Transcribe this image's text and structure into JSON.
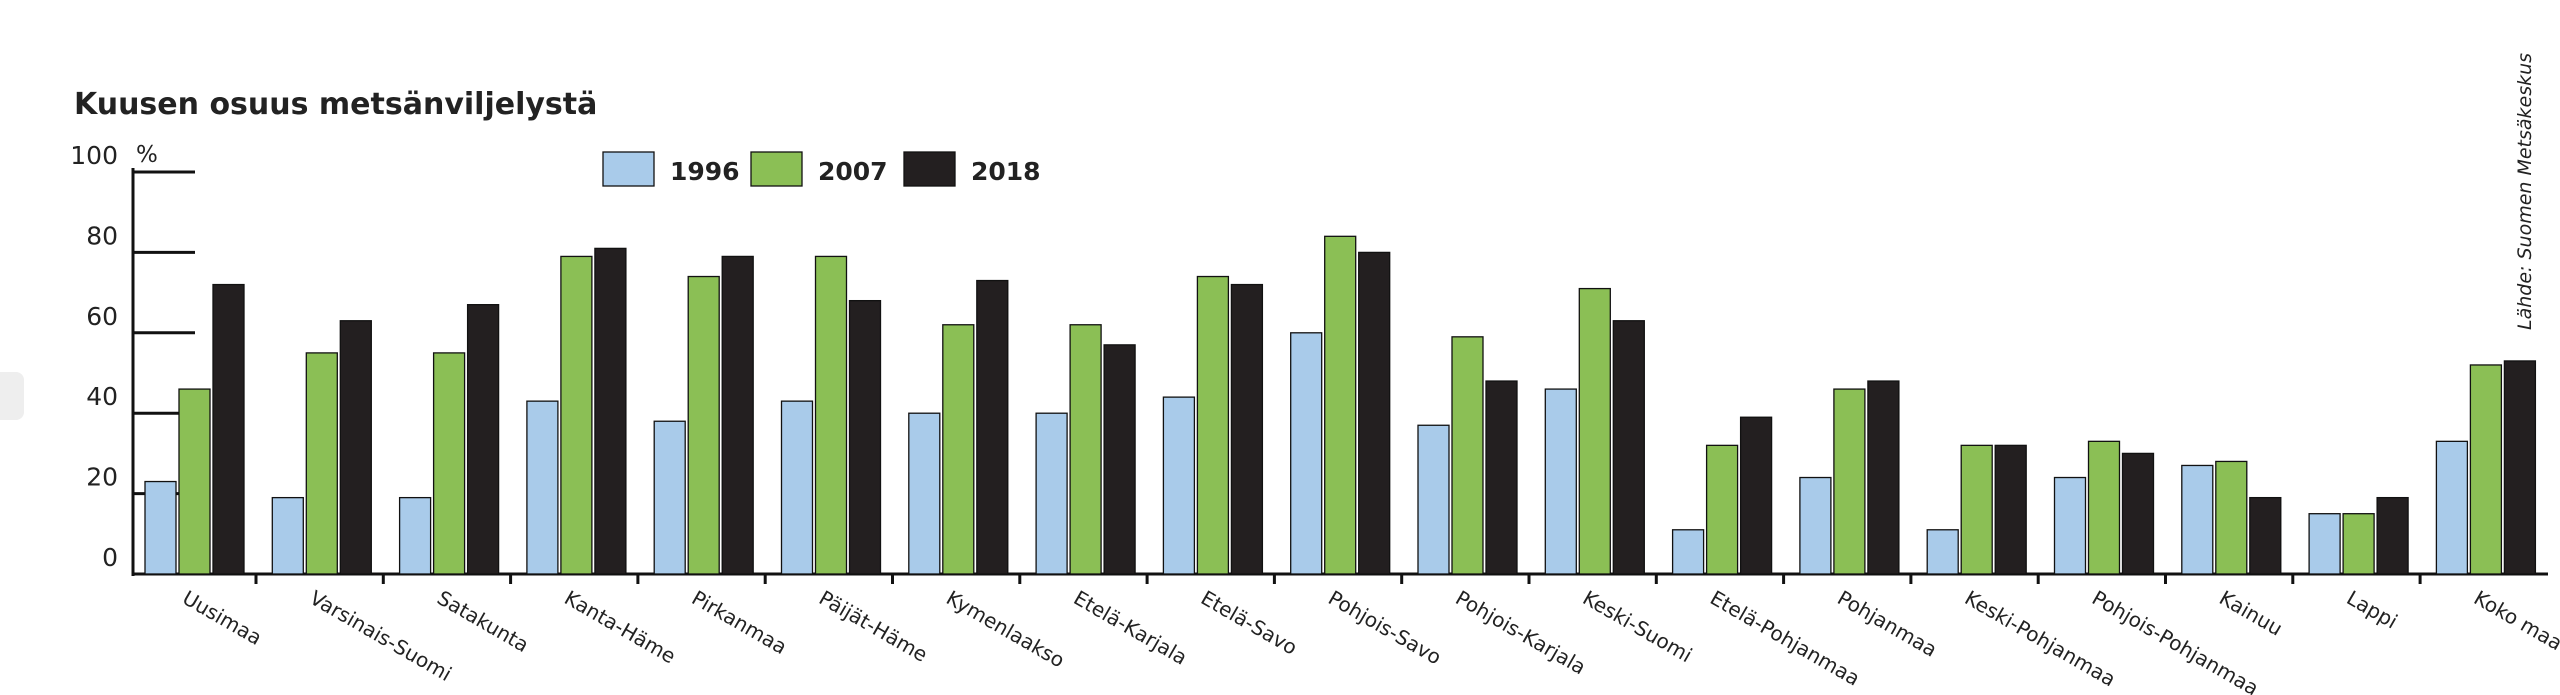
{
  "chart_data": {
    "type": "bar",
    "title": "Kuusen osuus metsänviljelystä",
    "ylabel": "%",
    "ylim": [
      0,
      100
    ],
    "yticks": [
      "0",
      "20",
      "40",
      "60",
      "80",
      "100"
    ],
    "categories": [
      "Uusimaa",
      "Varsinais-Suomi",
      "Satakunta",
      "Kanta-Häme",
      "Pirkanmaa",
      "Päijät-Häme",
      "Kymenlaakso",
      "Etelä-Karjala",
      "Etelä-Savo",
      "Pohjois-Savo",
      "Pohjois-Karjala",
      "Keski-Suomi",
      "Etelä-Pohjanmaa",
      "Pohjanmaa",
      "Keski-Pohjanmaa",
      "Pohjois-Pohjanmaa",
      "Kainuu",
      "Lappi",
      "Koko maa"
    ],
    "series": [
      {
        "name": "1996",
        "color": "#a9cbea",
        "values": [
          23,
          19,
          19,
          43,
          38,
          43,
          40,
          40,
          44,
          60,
          37,
          46,
          11,
          24,
          11,
          24,
          27,
          15,
          33
        ]
      },
      {
        "name": "2007",
        "color": "#8bbf55",
        "values": [
          46,
          55,
          55,
          79,
          74,
          79,
          62,
          62,
          74,
          84,
          59,
          71,
          32,
          46,
          32,
          33,
          28,
          15,
          52
        ]
      },
      {
        "name": "2018",
        "color": "#231f20",
        "values": [
          72,
          63,
          67,
          81,
          79,
          68,
          73,
          57,
          72,
          80,
          48,
          63,
          39,
          48,
          32,
          30,
          19,
          19,
          53
        ]
      }
    ],
    "legend_position": "top",
    "grid": false,
    "source": "Lähde: Suomen Metsäkeskus"
  }
}
